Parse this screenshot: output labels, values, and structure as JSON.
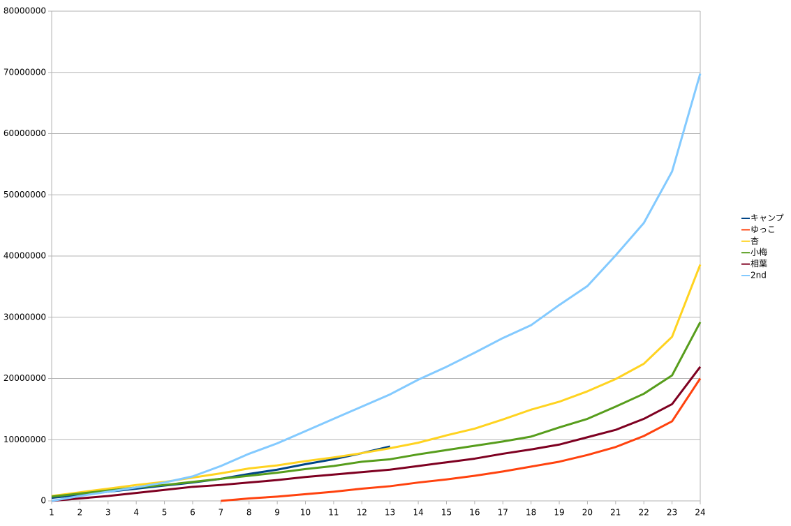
{
  "chart_data": {
    "type": "line",
    "x": [
      1,
      2,
      3,
      4,
      5,
      6,
      7,
      8,
      9,
      10,
      11,
      12,
      13,
      14,
      15,
      16,
      17,
      18,
      19,
      20,
      21,
      22,
      23,
      24
    ],
    "xlim": [
      1,
      24
    ],
    "xticks": [
      1,
      2,
      3,
      4,
      5,
      6,
      7,
      8,
      9,
      10,
      11,
      12,
      13,
      14,
      15,
      16,
      17,
      18,
      19,
      20,
      21,
      22,
      23,
      24
    ],
    "ylim": [
      0,
      80000000
    ],
    "yticks": [
      0,
      10000000,
      20000000,
      30000000,
      40000000,
      50000000,
      60000000,
      70000000,
      80000000
    ],
    "grid": true,
    "legend": "right",
    "series": [
      {
        "name": "キャンプ",
        "color": "#004586",
        "values": [
          500000,
          1000000,
          1500000,
          2000000,
          2500000,
          3000000,
          3600000,
          4400000,
          5100000,
          6000000,
          6800000,
          7800000,
          8900000,
          null,
          null,
          null,
          null,
          null,
          null,
          null,
          null,
          null,
          null,
          null
        ]
      },
      {
        "name": "ゆっこ",
        "color": "#ff420e",
        "values": [
          null,
          null,
          null,
          null,
          null,
          null,
          0,
          400000,
          700000,
          1100000,
          1500000,
          2000000,
          2400000,
          3000000,
          3500000,
          4100000,
          4800000,
          5600000,
          6400000,
          7500000,
          8800000,
          10600000,
          13000000,
          20000000
        ]
      },
      {
        "name": "杏",
        "color": "#ffd320",
        "values": [
          800000,
          1400000,
          2000000,
          2600000,
          3100000,
          3800000,
          4500000,
          5300000,
          5800000,
          6500000,
          7100000,
          7800000,
          8600000,
          9500000,
          10700000,
          11800000,
          13300000,
          14900000,
          16200000,
          17900000,
          19900000,
          22400000,
          26800000,
          38600000
        ]
      },
      {
        "name": "小梅",
        "color": "#579d1c",
        "values": [
          700000,
          1200000,
          1700000,
          2200000,
          2600000,
          3100000,
          3600000,
          4100000,
          4600000,
          5200000,
          5700000,
          6400000,
          6800000,
          7600000,
          8300000,
          9000000,
          9700000,
          10500000,
          12000000,
          13400000,
          15400000,
          17500000,
          20500000,
          29200000
        ]
      },
      {
        "name": "相葉",
        "color": "#7e0021",
        "values": [
          0,
          400000,
          800000,
          1300000,
          1800000,
          2300000,
          2600000,
          3000000,
          3400000,
          3900000,
          4300000,
          4700000,
          5100000,
          5700000,
          6300000,
          6900000,
          7700000,
          8400000,
          9200000,
          10400000,
          11600000,
          13400000,
          15800000,
          21900000
        ]
      },
      {
        "name": "2nd",
        "color": "#83caff",
        "values": [
          0,
          800000,
          1500000,
          2200000,
          3000000,
          4000000,
          5700000,
          7700000,
          9400000,
          11400000,
          13400000,
          15400000,
          17400000,
          19800000,
          21900000,
          24200000,
          26600000,
          28700000,
          32000000,
          35100000,
          40100000,
          45400000,
          53800000,
          69800000
        ]
      }
    ]
  }
}
